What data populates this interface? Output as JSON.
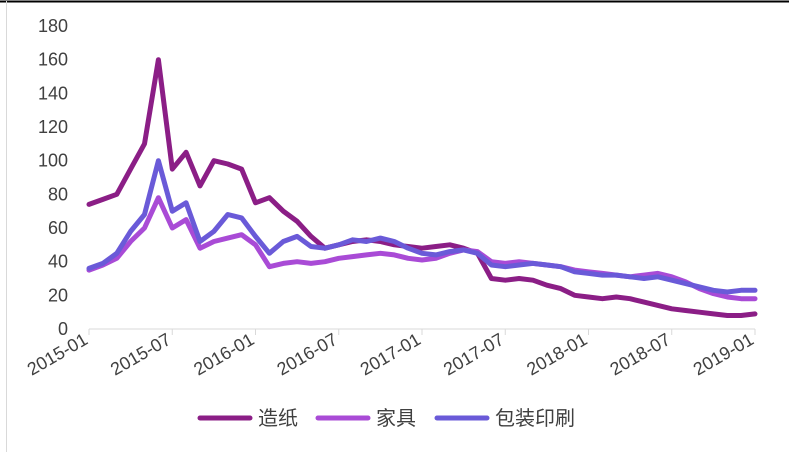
{
  "chart_data": {
    "type": "line",
    "title": "",
    "xlabel": "",
    "ylabel": "",
    "ylim": [
      0,
      180
    ],
    "yticks": [
      0,
      20,
      40,
      60,
      80,
      100,
      120,
      140,
      160,
      180
    ],
    "xticks": [
      "2015-01",
      "2015-07",
      "2016-01",
      "2016-07",
      "2017-01",
      "2017-07",
      "2018-01",
      "2018-07",
      "2019-01"
    ],
    "xrange": [
      "2015-01",
      "2019-01"
    ],
    "grid": false,
    "legend_position": "bottom",
    "series": [
      {
        "name": "造纸",
        "color": "#8B1E86",
        "points": [
          [
            "2015-01",
            74
          ],
          [
            "2015-02",
            77
          ],
          [
            "2015-03",
            80
          ],
          [
            "2015-04",
            95
          ],
          [
            "2015-05",
            110
          ],
          [
            "2015-06",
            160
          ],
          [
            "2015-07",
            95
          ],
          [
            "2015-08",
            105
          ],
          [
            "2015-09",
            85
          ],
          [
            "2015-10",
            100
          ],
          [
            "2015-11",
            98
          ],
          [
            "2015-12",
            95
          ],
          [
            "2016-01",
            75
          ],
          [
            "2016-02",
            78
          ],
          [
            "2016-03",
            70
          ],
          [
            "2016-04",
            64
          ],
          [
            "2016-05",
            55
          ],
          [
            "2016-06",
            48
          ],
          [
            "2016-07",
            50
          ],
          [
            "2016-08",
            52
          ],
          [
            "2016-09",
            53
          ],
          [
            "2016-10",
            52
          ],
          [
            "2016-11",
            50
          ],
          [
            "2016-12",
            49
          ],
          [
            "2017-01",
            48
          ],
          [
            "2017-02",
            49
          ],
          [
            "2017-03",
            50
          ],
          [
            "2017-04",
            48
          ],
          [
            "2017-05",
            45
          ],
          [
            "2017-06",
            30
          ],
          [
            "2017-07",
            29
          ],
          [
            "2017-08",
            30
          ],
          [
            "2017-09",
            29
          ],
          [
            "2017-10",
            26
          ],
          [
            "2017-11",
            24
          ],
          [
            "2017-12",
            20
          ],
          [
            "2018-01",
            19
          ],
          [
            "2018-02",
            18
          ],
          [
            "2018-03",
            19
          ],
          [
            "2018-04",
            18
          ],
          [
            "2018-05",
            16
          ],
          [
            "2018-06",
            14
          ],
          [
            "2018-07",
            12
          ],
          [
            "2018-08",
            11
          ],
          [
            "2018-09",
            10
          ],
          [
            "2018-10",
            9
          ],
          [
            "2018-11",
            8
          ],
          [
            "2018-12",
            8
          ],
          [
            "2019-01",
            9
          ]
        ]
      },
      {
        "name": "家具",
        "color": "#A94BD6",
        "points": [
          [
            "2015-01",
            35
          ],
          [
            "2015-02",
            38
          ],
          [
            "2015-03",
            42
          ],
          [
            "2015-04",
            52
          ],
          [
            "2015-05",
            60
          ],
          [
            "2015-06",
            78
          ],
          [
            "2015-07",
            60
          ],
          [
            "2015-08",
            65
          ],
          [
            "2015-09",
            48
          ],
          [
            "2015-10",
            52
          ],
          [
            "2015-11",
            54
          ],
          [
            "2015-12",
            56
          ],
          [
            "2016-01",
            50
          ],
          [
            "2016-02",
            37
          ],
          [
            "2016-03",
            39
          ],
          [
            "2016-04",
            40
          ],
          [
            "2016-05",
            39
          ],
          [
            "2016-06",
            40
          ],
          [
            "2016-07",
            42
          ],
          [
            "2016-08",
            43
          ],
          [
            "2016-09",
            44
          ],
          [
            "2016-10",
            45
          ],
          [
            "2016-11",
            44
          ],
          [
            "2016-12",
            42
          ],
          [
            "2017-01",
            41
          ],
          [
            "2017-02",
            42
          ],
          [
            "2017-03",
            45
          ],
          [
            "2017-04",
            47
          ],
          [
            "2017-05",
            46
          ],
          [
            "2017-06",
            40
          ],
          [
            "2017-07",
            39
          ],
          [
            "2017-08",
            40
          ],
          [
            "2017-09",
            39
          ],
          [
            "2017-10",
            38
          ],
          [
            "2017-11",
            37
          ],
          [
            "2017-12",
            35
          ],
          [
            "2018-01",
            34
          ],
          [
            "2018-02",
            33
          ],
          [
            "2018-03",
            32
          ],
          [
            "2018-04",
            31
          ],
          [
            "2018-05",
            32
          ],
          [
            "2018-06",
            33
          ],
          [
            "2018-07",
            31
          ],
          [
            "2018-08",
            28
          ],
          [
            "2018-09",
            24
          ],
          [
            "2018-10",
            21
          ],
          [
            "2018-11",
            19
          ],
          [
            "2018-12",
            18
          ],
          [
            "2019-01",
            18
          ]
        ]
      },
      {
        "name": "包装印刷",
        "color": "#6A5AD8",
        "points": [
          [
            "2015-01",
            36
          ],
          [
            "2015-02",
            39
          ],
          [
            "2015-03",
            45
          ],
          [
            "2015-04",
            58
          ],
          [
            "2015-05",
            68
          ],
          [
            "2015-06",
            100
          ],
          [
            "2015-07",
            70
          ],
          [
            "2015-08",
            75
          ],
          [
            "2015-09",
            52
          ],
          [
            "2015-10",
            58
          ],
          [
            "2015-11",
            68
          ],
          [
            "2015-12",
            66
          ],
          [
            "2016-01",
            55
          ],
          [
            "2016-02",
            45
          ],
          [
            "2016-03",
            52
          ],
          [
            "2016-04",
            55
          ],
          [
            "2016-05",
            49
          ],
          [
            "2016-06",
            48
          ],
          [
            "2016-07",
            50
          ],
          [
            "2016-08",
            53
          ],
          [
            "2016-09",
            52
          ],
          [
            "2016-10",
            54
          ],
          [
            "2016-11",
            52
          ],
          [
            "2016-12",
            48
          ],
          [
            "2017-01",
            45
          ],
          [
            "2017-02",
            44
          ],
          [
            "2017-03",
            46
          ],
          [
            "2017-04",
            47
          ],
          [
            "2017-05",
            45
          ],
          [
            "2017-06",
            38
          ],
          [
            "2017-07",
            37
          ],
          [
            "2017-08",
            38
          ],
          [
            "2017-09",
            39
          ],
          [
            "2017-10",
            38
          ],
          [
            "2017-11",
            37
          ],
          [
            "2017-12",
            34
          ],
          [
            "2018-01",
            33
          ],
          [
            "2018-02",
            32
          ],
          [
            "2018-03",
            32
          ],
          [
            "2018-04",
            31
          ],
          [
            "2018-05",
            30
          ],
          [
            "2018-06",
            31
          ],
          [
            "2018-07",
            29
          ],
          [
            "2018-08",
            27
          ],
          [
            "2018-09",
            25
          ],
          [
            "2018-10",
            23
          ],
          [
            "2018-11",
            22
          ],
          [
            "2018-12",
            23
          ],
          [
            "2019-01",
            23
          ]
        ]
      }
    ]
  }
}
